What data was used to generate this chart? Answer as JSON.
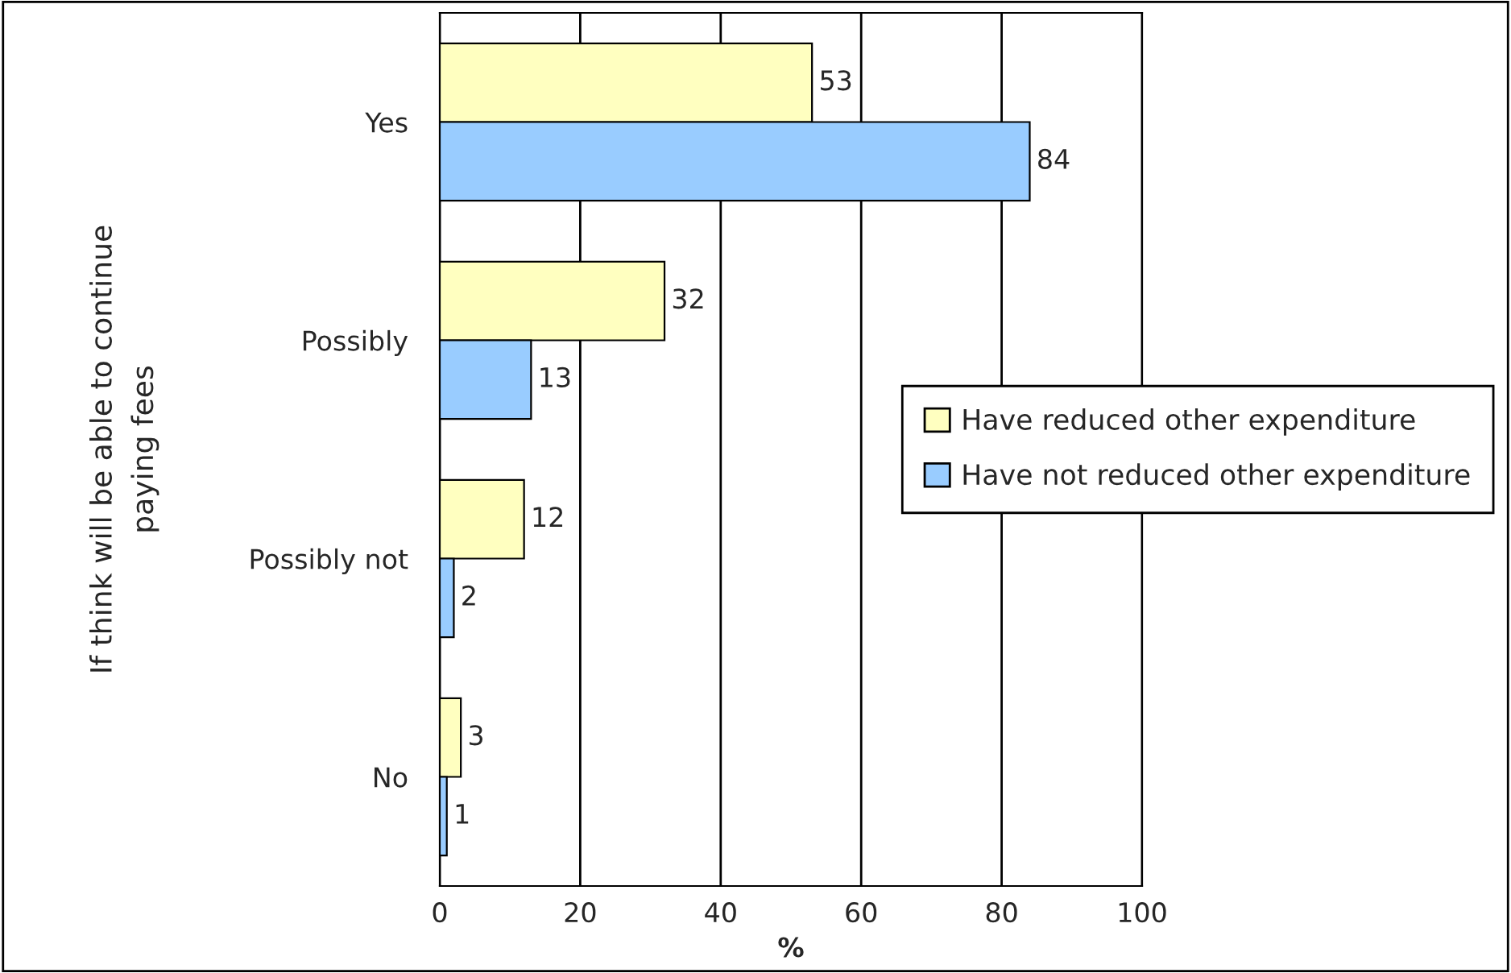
{
  "chart_data": {
    "type": "bar",
    "orientation": "horizontal",
    "categories": [
      "Yes",
      "Possibly",
      "Possibly not",
      "No"
    ],
    "series": [
      {
        "name": "Have reduced other expenditure",
        "color": "#ffffc0",
        "values": [
          53,
          32,
          12,
          3
        ]
      },
      {
        "name": "Have not reduced other expenditure",
        "color": "#99ccff",
        "values": [
          84,
          13,
          2,
          1
        ]
      }
    ],
    "xlabel": "%",
    "ylabel": "If think will be able to continue\npaying fees",
    "xlim": [
      0,
      100
    ],
    "xticks": [
      0,
      20,
      40,
      60,
      80,
      100
    ],
    "grid": "x",
    "legend": "right",
    "data_labels": true
  }
}
